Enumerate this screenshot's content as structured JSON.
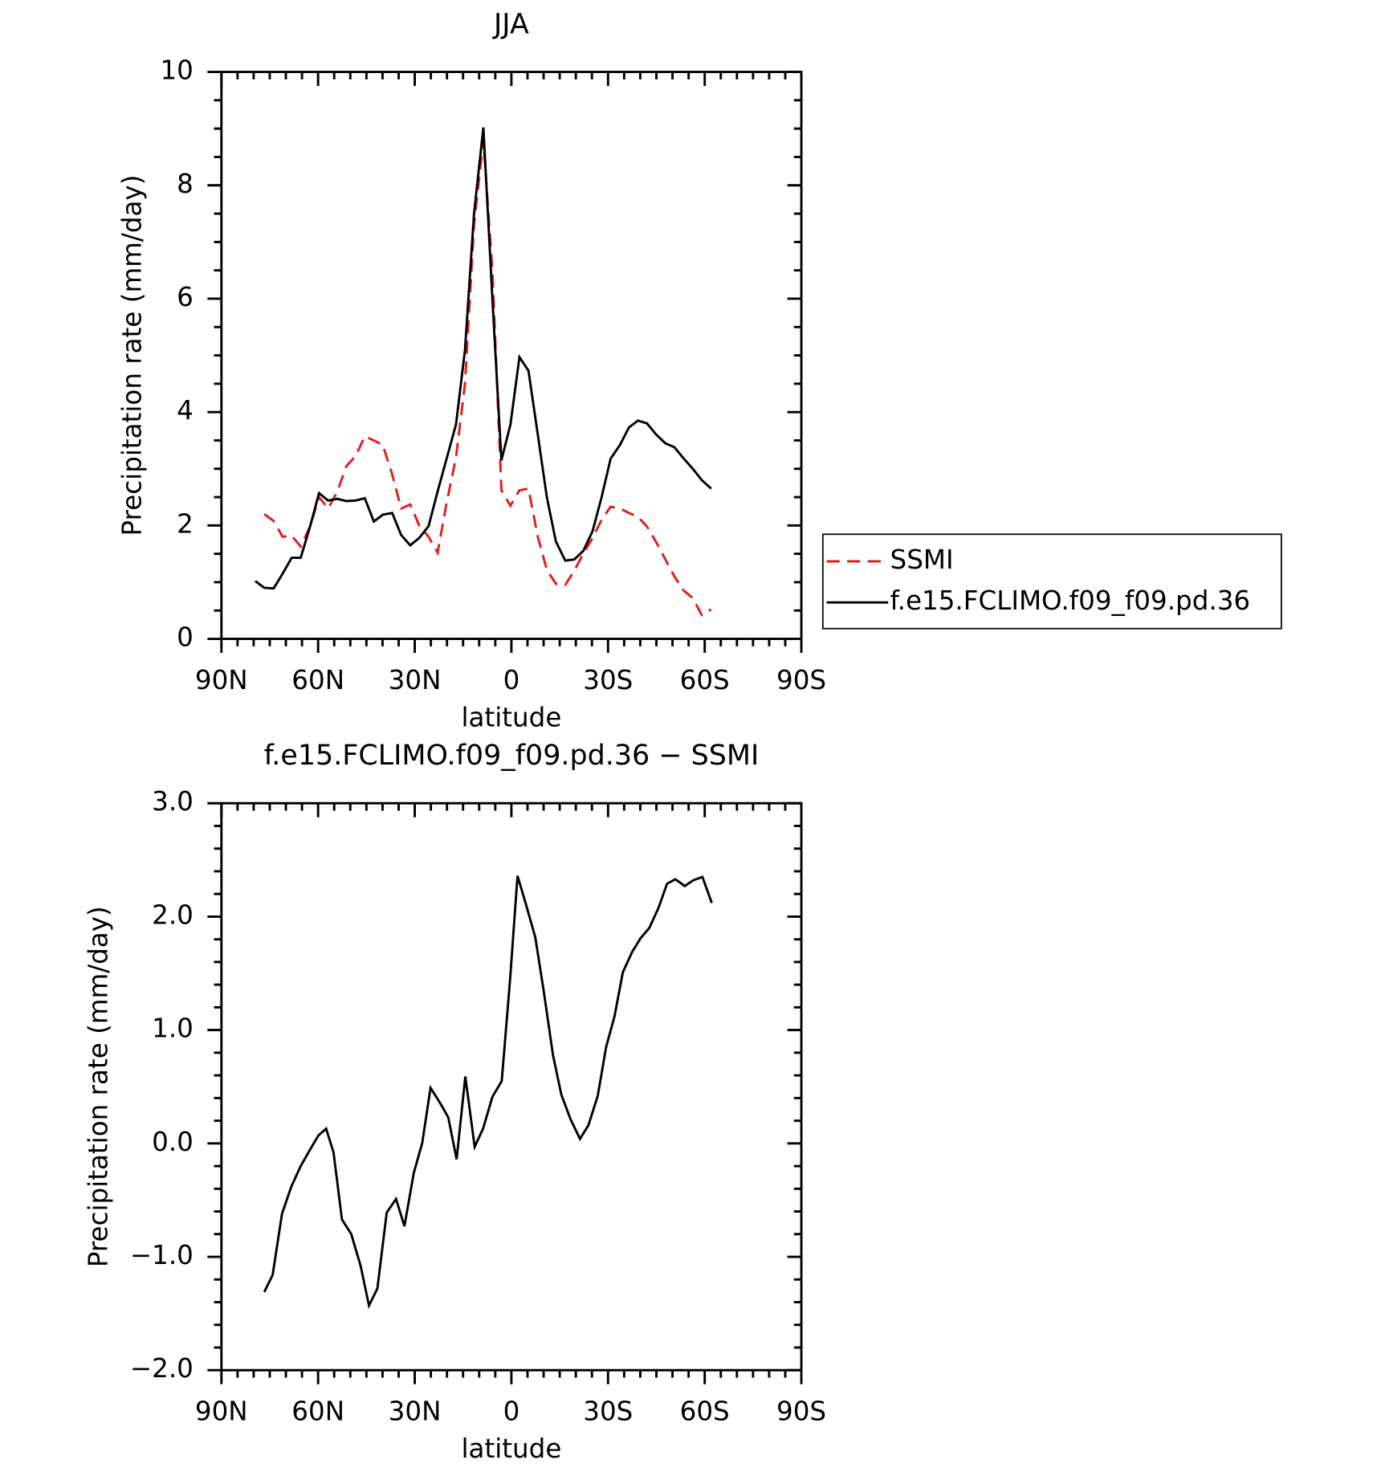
{
  "chart_data": [
    {
      "type": "line",
      "title": "JJA",
      "xlabel": "latitude",
      "ylabel": "Precipitation rate (mm/day)",
      "xlim": [
        90,
        -90
      ],
      "xticks": [
        {
          "value": 90,
          "label": "90N"
        },
        {
          "value": 60,
          "label": "60N"
        },
        {
          "value": 30,
          "label": "30N"
        },
        0,
        {
          "value": -30,
          "label": "30S"
        },
        {
          "value": -60,
          "label": "60S"
        },
        {
          "value": -90,
          "label": "90S"
        }
      ],
      "ylim": [
        0,
        10
      ],
      "yticks": [
        0,
        2,
        4,
        6,
        8,
        10
      ],
      "legend": "right",
      "x": [
        79.5,
        76.7,
        73.8,
        71.0,
        68.2,
        65.4,
        62.5,
        59.7,
        56.9,
        54.0,
        51.2,
        48.4,
        45.5,
        42.7,
        39.9,
        37.0,
        34.2,
        31.4,
        28.6,
        25.7,
        22.9,
        20.1,
        17.2,
        14.4,
        11.6,
        8.7,
        5.9,
        3.1,
        0.3,
        -2.5,
        -5.3,
        -8.2,
        -11.0,
        -13.8,
        -16.7,
        -19.5,
        -22.3,
        -25.2,
        -28.0,
        -30.8,
        -33.7,
        -36.5,
        -39.3,
        -42.1,
        -45.0,
        -47.8,
        -50.6,
        -53.5,
        -56.3,
        -59.1,
        -62.0
      ],
      "series": [
        {
          "name": "SSMI",
          "color": "#e41a1c",
          "dash": true,
          "values": [
            null,
            2.2,
            2.08,
            1.8,
            1.82,
            1.63,
            1.98,
            2.5,
            2.3,
            2.6,
            3.05,
            3.22,
            3.57,
            3.5,
            3.42,
            2.9,
            2.3,
            2.37,
            2.0,
            1.8,
            1.52,
            2.4,
            3.2,
            4.5,
            7.3,
            8.8,
            6.5,
            2.62,
            2.35,
            2.62,
            2.65,
            1.8,
            1.22,
            0.97,
            0.95,
            1.2,
            1.5,
            1.78,
            2.1,
            2.33,
            2.3,
            2.22,
            2.15,
            1.98,
            1.7,
            1.4,
            1.1,
            0.85,
            0.72,
            0.42,
            0.52
          ]
        },
        {
          "name": "f.e15.FCLIMO.f09_f09.pd.36",
          "color": "#000000",
          "dash": false,
          "values": [
            1.02,
            0.9,
            0.89,
            1.15,
            1.43,
            1.43,
            1.98,
            2.57,
            2.44,
            2.47,
            2.43,
            2.44,
            2.48,
            2.07,
            2.19,
            2.22,
            1.83,
            1.65,
            1.78,
            1.99,
            2.6,
            3.18,
            3.78,
            5.1,
            7.5,
            9.02,
            6.0,
            3.15,
            3.78,
            4.97,
            4.73,
            3.6,
            2.5,
            1.72,
            1.38,
            1.4,
            1.55,
            1.9,
            2.5,
            3.18,
            3.42,
            3.73,
            3.85,
            3.8,
            3.6,
            3.45,
            3.38,
            3.18,
            3.0,
            2.8,
            2.65
          ]
        }
      ]
    },
    {
      "type": "line",
      "title": "f.e15.FCLIMO.f09_f09.pd.36 − SSMI",
      "xlabel": "latitude",
      "ylabel": "Precipitation rate (mm/day)",
      "xlim": [
        90,
        -90
      ],
      "xticks": [
        {
          "value": 90,
          "label": "90N"
        },
        {
          "value": 60,
          "label": "60N"
        },
        {
          "value": 30,
          "label": "30N"
        },
        0,
        {
          "value": -30,
          "label": "30S"
        },
        {
          "value": -60,
          "label": "60S"
        },
        {
          "value": -90,
          "label": "90S"
        }
      ],
      "ylim": [
        -2,
        3
      ],
      "yticks": [
        {
          "value": -2,
          "label": "−2.0"
        },
        {
          "value": -1,
          "label": "−1.0"
        },
        {
          "value": 0,
          "label": "0.0"
        },
        {
          "value": 1,
          "label": "1.0"
        },
        {
          "value": 2,
          "label": "2.0"
        },
        {
          "value": 3,
          "label": "3.0"
        }
      ],
      "x": [
        76.7,
        74.1,
        71.2,
        68.3,
        65.4,
        62.8,
        59.9,
        57.5,
        55.2,
        52.6,
        49.7,
        46.8,
        44.2,
        41.6,
        38.7,
        35.8,
        33.2,
        30.3,
        27.7,
        25.1,
        22.2,
        19.6,
        17.0,
        14.3,
        11.4,
        8.8,
        5.9,
        3.0,
        0.4,
        -1.9,
        -4.5,
        -7.4,
        -10.0,
        -12.9,
        -15.5,
        -18.4,
        -21.3,
        -23.9,
        -26.8,
        -29.4,
        -32.0,
        -34.6,
        -37.5,
        -40.1,
        -42.8,
        -45.7,
        -48.3,
        -50.9,
        -53.8,
        -56.4,
        -59.3,
        -62.2
      ],
      "series": [
        {
          "color": "#000000",
          "dash": false,
          "values": [
            -1.31,
            -1.16,
            -0.62,
            -0.38,
            -0.2,
            -0.07,
            0.07,
            0.13,
            -0.08,
            -0.67,
            -0.8,
            -1.08,
            -1.43,
            -1.28,
            -0.61,
            -0.49,
            -0.73,
            -0.26,
            0.0,
            0.49,
            0.36,
            0.23,
            -0.14,
            0.59,
            -0.03,
            0.13,
            0.41,
            0.55,
            1.45,
            2.36,
            2.11,
            1.82,
            1.35,
            0.78,
            0.43,
            0.21,
            0.04,
            0.16,
            0.42,
            0.85,
            1.12,
            1.51,
            1.69,
            1.81,
            1.9,
            2.08,
            2.29,
            2.33,
            2.27,
            2.32,
            2.35,
            2.12
          ]
        }
      ]
    }
  ]
}
